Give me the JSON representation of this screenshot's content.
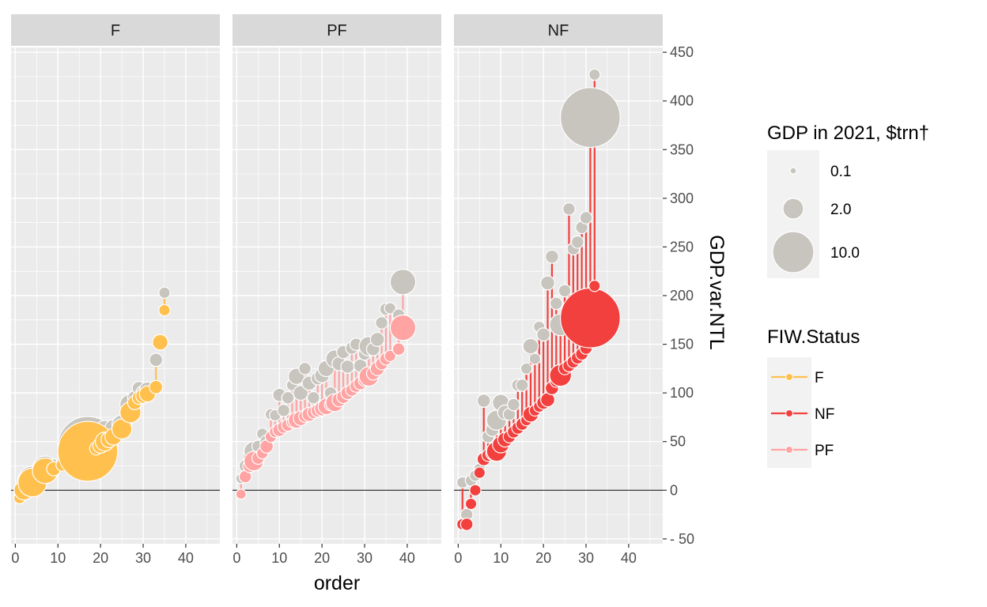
{
  "chart_data": {
    "type": "scatter",
    "subtype": "faceted lollipop / bubble",
    "facets": [
      "F",
      "PF",
      "NF"
    ],
    "xlabel": "order",
    "ylabel": "GDP.var.NTL",
    "x_ticks": [
      0,
      10,
      20,
      30,
      40
    ],
    "xlim": [
      -1,
      48
    ],
    "y_ticks": [
      -50,
      0,
      50,
      100,
      150,
      200,
      250,
      300,
      350,
      400,
      450
    ],
    "ylim": [
      -55,
      455
    ],
    "reference_line_y": 0,
    "grid": true,
    "legend_position": "right",
    "size_legend": {
      "title": "GDP in 2021, $trn†",
      "entries": [
        {
          "label": "0.1",
          "value": 0.1
        },
        {
          "label": "2.0",
          "value": 2.0
        },
        {
          "label": "10.0",
          "value": 10.0
        }
      ]
    },
    "color_legend": {
      "title": "FIW.Status",
      "entries": [
        {
          "label": "F",
          "color": "#FFC04D"
        },
        {
          "label": "NF",
          "color": "#F2403E"
        },
        {
          "label": "PF",
          "color": "#FFA3A3"
        }
      ]
    },
    "colors": {
      "F": "#FFC04D",
      "PF": "#FFA3A3",
      "NF": "#F2403E",
      "gdp_point": "#C8C5BF",
      "panel_bg": "#EBEBEB",
      "strip_bg": "#D9D9D9"
    },
    "panels": [
      {
        "facet": "F",
        "status": "F",
        "points": [
          {
            "order": 1,
            "ntl": -8,
            "gdp": -6,
            "size": 0.3
          },
          {
            "order": 2,
            "ntl": 0,
            "gdp": 0,
            "size": 1.5
          },
          {
            "order": 4,
            "ntl": 8,
            "gdp": 10,
            "size": 4.0
          },
          {
            "order": 7,
            "ntl": 20,
            "gdp": 22,
            "size": 3.0
          },
          {
            "order": 9,
            "ntl": 22,
            "gdp": 25,
            "size": 0.6
          },
          {
            "order": 11,
            "ntl": 26,
            "gdp": 28,
            "size": 0.4
          },
          {
            "order": 13,
            "ntl": 30,
            "gdp": 31,
            "size": 1.2
          },
          {
            "order": 17,
            "ntl": 40,
            "gdp": 45,
            "size": 21.0
          },
          {
            "order": 19,
            "ntl": 43,
            "gdp": 48,
            "size": 0.5
          },
          {
            "order": 20,
            "ntl": 46,
            "gdp": 50,
            "size": 0.8
          },
          {
            "order": 21,
            "ntl": 50,
            "gdp": 62,
            "size": 1.4
          },
          {
            "order": 22,
            "ntl": 52,
            "gdp": 58,
            "size": 0.9
          },
          {
            "order": 23,
            "ntl": 55,
            "gdp": 64,
            "size": 1.0
          },
          {
            "order": 25,
            "ntl": 63,
            "gdp": 67,
            "size": 1.6
          },
          {
            "order": 27,
            "ntl": 80,
            "gdp": 88,
            "size": 1.8
          },
          {
            "order": 28,
            "ntl": 90,
            "gdp": 95,
            "size": 0.6
          },
          {
            "order": 29,
            "ntl": 95,
            "gdp": 105,
            "size": 0.5
          },
          {
            "order": 30,
            "ntl": 97,
            "gdp": 100,
            "size": 0.7
          },
          {
            "order": 31,
            "ntl": 99,
            "gdp": 103,
            "size": 0.9
          },
          {
            "order": 33,
            "ntl": 106,
            "gdp": 134,
            "size": 0.5
          },
          {
            "order": 34,
            "ntl": 152,
            "gdp": 152,
            "size": 0.8
          },
          {
            "order": 35,
            "ntl": 185,
            "gdp": 203,
            "size": 0.3
          }
        ]
      },
      {
        "facet": "PF",
        "status": "PF",
        "points": [
          {
            "order": 1,
            "ntl": -4,
            "gdp": 12,
            "size": 0.2
          },
          {
            "order": 2,
            "ntl": 14,
            "gdp": 25,
            "size": 0.4
          },
          {
            "order": 3,
            "ntl": 25,
            "gdp": 35,
            "size": 0.5
          },
          {
            "order": 4,
            "ntl": 30,
            "gdp": 40,
            "size": 1.5
          },
          {
            "order": 5,
            "ntl": 33,
            "gdp": 45,
            "size": 0.4
          },
          {
            "order": 6,
            "ntl": 38,
            "gdp": 58,
            "size": 0.3
          },
          {
            "order": 7,
            "ntl": 45,
            "gdp": 50,
            "size": 0.5
          },
          {
            "order": 8,
            "ntl": 55,
            "gdp": 78,
            "size": 0.3
          },
          {
            "order": 9,
            "ntl": 60,
            "gdp": 77,
            "size": 0.3
          },
          {
            "order": 10,
            "ntl": 62,
            "gdp": 98,
            "size": 0.5
          },
          {
            "order": 11,
            "ntl": 65,
            "gdp": 82,
            "size": 0.4
          },
          {
            "order": 12,
            "ntl": 67,
            "gdp": 95,
            "size": 0.4
          },
          {
            "order": 13,
            "ntl": 70,
            "gdp": 108,
            "size": 0.3
          },
          {
            "order": 14,
            "ntl": 72,
            "gdp": 117,
            "size": 0.9
          },
          {
            "order": 15,
            "ntl": 74,
            "gdp": 100,
            "size": 0.7
          },
          {
            "order": 16,
            "ntl": 76,
            "gdp": 125,
            "size": 0.4
          },
          {
            "order": 17,
            "ntl": 78,
            "gdp": 110,
            "size": 0.6
          },
          {
            "order": 18,
            "ntl": 80,
            "gdp": 95,
            "size": 0.4
          },
          {
            "order": 19,
            "ntl": 82,
            "gdp": 115,
            "size": 0.5
          },
          {
            "order": 20,
            "ntl": 84,
            "gdp": 118,
            "size": 0.7
          },
          {
            "order": 21,
            "ntl": 86,
            "gdp": 125,
            "size": 0.9
          },
          {
            "order": 22,
            "ntl": 88,
            "gdp": 100,
            "size": 0.4
          },
          {
            "order": 23,
            "ntl": 90,
            "gdp": 135,
            "size": 1.2
          },
          {
            "order": 24,
            "ntl": 93,
            "gdp": 130,
            "size": 0.6
          },
          {
            "order": 25,
            "ntl": 96,
            "gdp": 142,
            "size": 0.5
          },
          {
            "order": 26,
            "ntl": 100,
            "gdp": 127,
            "size": 0.5
          },
          {
            "order": 27,
            "ntl": 103,
            "gdp": 146,
            "size": 0.4
          },
          {
            "order": 28,
            "ntl": 107,
            "gdp": 150,
            "size": 0.4
          },
          {
            "order": 29,
            "ntl": 110,
            "gdp": 128,
            "size": 0.5
          },
          {
            "order": 30,
            "ntl": 113,
            "gdp": 140,
            "size": 0.4
          },
          {
            "order": 31,
            "ntl": 117,
            "gdp": 148,
            "size": 1.5
          },
          {
            "order": 32,
            "ntl": 120,
            "gdp": 145,
            "size": 0.5
          },
          {
            "order": 33,
            "ntl": 125,
            "gdp": 155,
            "size": 0.6
          },
          {
            "order": 34,
            "ntl": 130,
            "gdp": 172,
            "size": 0.4
          },
          {
            "order": 35,
            "ntl": 135,
            "gdp": 186,
            "size": 0.4
          },
          {
            "order": 36,
            "ntl": 138,
            "gdp": 187,
            "size": 0.3
          },
          {
            "order": 38,
            "ntl": 145,
            "gdp": 180,
            "size": 0.4
          },
          {
            "order": 39,
            "ntl": 167,
            "gdp": 214,
            "size": 3.0
          }
        ]
      },
      {
        "facet": "NF",
        "status": "NF",
        "points": [
          {
            "order": 1,
            "ntl": -35,
            "gdp": 8,
            "size": 0.3
          },
          {
            "order": 2,
            "ntl": -35,
            "gdp": -25,
            "size": 0.4
          },
          {
            "order": 3,
            "ntl": -14,
            "gdp": 10,
            "size": 0.3
          },
          {
            "order": 4,
            "ntl": 0,
            "gdp": 15,
            "size": 0.3
          },
          {
            "order": 5,
            "ntl": 18,
            "gdp": 22,
            "size": 0.3
          },
          {
            "order": 6,
            "ntl": 32,
            "gdp": 92,
            "size": 0.5
          },
          {
            "order": 7,
            "ntl": 36,
            "gdp": 55,
            "size": 0.4
          },
          {
            "order": 8,
            "ntl": 38,
            "gdp": 62,
            "size": 0.5
          },
          {
            "order": 9,
            "ntl": 40,
            "gdp": 72,
            "size": 1.6
          },
          {
            "order": 10,
            "ntl": 47,
            "gdp": 90,
            "size": 1.0
          },
          {
            "order": 11,
            "ntl": 52,
            "gdp": 80,
            "size": 0.7
          },
          {
            "order": 12,
            "ntl": 55,
            "gdp": 78,
            "size": 0.4
          },
          {
            "order": 13,
            "ntl": 60,
            "gdp": 88,
            "size": 0.4
          },
          {
            "order": 14,
            "ntl": 64,
            "gdp": 108,
            "size": 0.4
          },
          {
            "order": 15,
            "ntl": 68,
            "gdp": 108,
            "size": 0.4
          },
          {
            "order": 16,
            "ntl": 72,
            "gdp": 125,
            "size": 0.3
          },
          {
            "order": 17,
            "ntl": 78,
            "gdp": 148,
            "size": 0.8
          },
          {
            "order": 18,
            "ntl": 82,
            "gdp": 135,
            "size": 0.3
          },
          {
            "order": 19,
            "ntl": 86,
            "gdp": 168,
            "size": 0.3
          },
          {
            "order": 20,
            "ntl": 90,
            "gdp": 160,
            "size": 0.5
          },
          {
            "order": 21,
            "ntl": 93,
            "gdp": 213,
            "size": 0.6
          },
          {
            "order": 22,
            "ntl": 105,
            "gdp": 240,
            "size": 0.5
          },
          {
            "order": 23,
            "ntl": 112,
            "gdp": 192,
            "size": 0.4
          },
          {
            "order": 24,
            "ntl": 118,
            "gdp": 170,
            "size": 2.0
          },
          {
            "order": 25,
            "ntl": 125,
            "gdp": 205,
            "size": 0.4
          },
          {
            "order": 26,
            "ntl": 128,
            "gdp": 289,
            "size": 0.4
          },
          {
            "order": 27,
            "ntl": 132,
            "gdp": 248,
            "size": 0.4
          },
          {
            "order": 28,
            "ntl": 136,
            "gdp": 255,
            "size": 0.4
          },
          {
            "order": 29,
            "ntl": 140,
            "gdp": 270,
            "size": 0.4
          },
          {
            "order": 30,
            "ntl": 146,
            "gdp": 280,
            "size": 0.4
          },
          {
            "order": 31,
            "ntl": 177,
            "gdp": 383,
            "size": 21.0
          },
          {
            "order": 32,
            "ntl": 210,
            "gdp": 427,
            "size": 0.3
          }
        ]
      }
    ]
  }
}
